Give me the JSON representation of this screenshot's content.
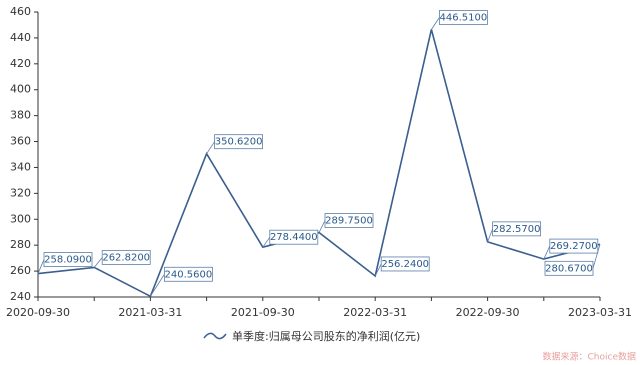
{
  "chart_data": {
    "type": "line",
    "categories": [
      "2020-09-30",
      null,
      "2021-03-31",
      null,
      "2021-09-30",
      null,
      "2022-03-31",
      null,
      "2022-09-30",
      null,
      "2023-03-31"
    ],
    "series": [
      {
        "name": "单季度:归属母公司股东的净利润(亿元)",
        "color": "#3a5f8f",
        "values": [
          258.09,
          262.82,
          240.56,
          350.62,
          278.44,
          289.75,
          256.24,
          446.51,
          282.57,
          269.27,
          280.67
        ],
        "value_labels": [
          "258.0900",
          "262.8200",
          "240.5600",
          "350.6200",
          "278.4400",
          "289.7500",
          "256.2400",
          "446.5100",
          "282.5700",
          "269.2700",
          "280.6700"
        ]
      }
    ],
    "ylim": [
      240,
      460
    ],
    "yticks": [
      240,
      260,
      280,
      300,
      320,
      340,
      360,
      380,
      400,
      420,
      440,
      460
    ],
    "source": "数据来源：Choice数据"
  }
}
